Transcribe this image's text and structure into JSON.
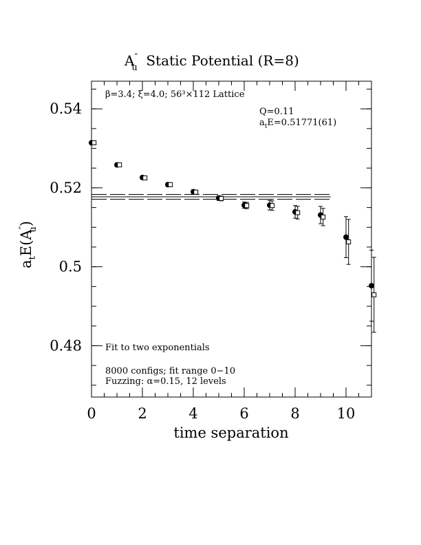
{
  "chart_data": {
    "type": "scatter",
    "title_main": "A",
    "title_sup": "″",
    "title_sub": "u",
    "title_rest": "  Static Potential (R=8)",
    "xlabel": "time separation",
    "ylabel_main": "a",
    "ylabel_sub": "t",
    "ylabel_rest": "E(A",
    "ylabel_sup": "″",
    "ylabel_sub2": "u",
    "ylabel_close": ")",
    "xlim": [
      0,
      11
    ],
    "ylim": [
      0.467,
      0.547
    ],
    "x_ticks": [
      0,
      2,
      4,
      6,
      8,
      10
    ],
    "x_tick_labels": [
      "0",
      "2",
      "4",
      "6",
      "8",
      "10"
    ],
    "y_ticks": [
      0.48,
      0.5,
      0.52,
      0.54
    ],
    "y_tick_labels": [
      "0.48",
      "0.5",
      "0.52",
      "0.54"
    ],
    "annotations": {
      "lattice": "β=3.4; ξ=4.0; 56³×112 Lattice",
      "q_value": "Q=0.11",
      "energy_main": "a",
      "energy_sub": "t",
      "energy_rest": "E=0.51771(61)",
      "fit_desc": "Fit to two exponentials",
      "configs": "8000 configs; fit range 0−10",
      "fuzzing": "Fuzzing: α=0.15, 12 levels"
    },
    "fit": {
      "value": 0.51771,
      "error": 0.00061,
      "x_range": [
        0,
        9.4
      ]
    },
    "series": [
      {
        "marker": "filled-circle",
        "x": [
          0,
          1,
          2,
          3,
          4,
          5,
          6,
          7,
          8,
          9,
          10,
          11
        ],
        "y": [
          0.5314,
          0.5258,
          0.5226,
          0.5208,
          0.519,
          0.5174,
          0.5156,
          0.5156,
          0.5139,
          0.5131,
          0.5075,
          0.4952
        ],
        "err": [
          0.0003,
          0.0004,
          0.0004,
          0.0005,
          0.0005,
          0.0006,
          0.0008,
          0.0012,
          0.0016,
          0.0022,
          0.0052,
          0.009
        ]
      },
      {
        "marker": "open-square",
        "x": [
          0.1,
          1.1,
          2.1,
          3.1,
          4.1,
          5.1,
          6.1,
          7.1,
          8.1,
          9.1,
          10.1,
          11.1
        ],
        "y": [
          0.5314,
          0.5258,
          0.5225,
          0.5208,
          0.5189,
          0.5173,
          0.5155,
          0.5155,
          0.5137,
          0.5126,
          0.5063,
          0.4929
        ],
        "err": [
          0.0003,
          0.0004,
          0.0004,
          0.0005,
          0.0005,
          0.0006,
          0.0008,
          0.0012,
          0.0016,
          0.0022,
          0.0057,
          0.0095
        ]
      }
    ]
  }
}
